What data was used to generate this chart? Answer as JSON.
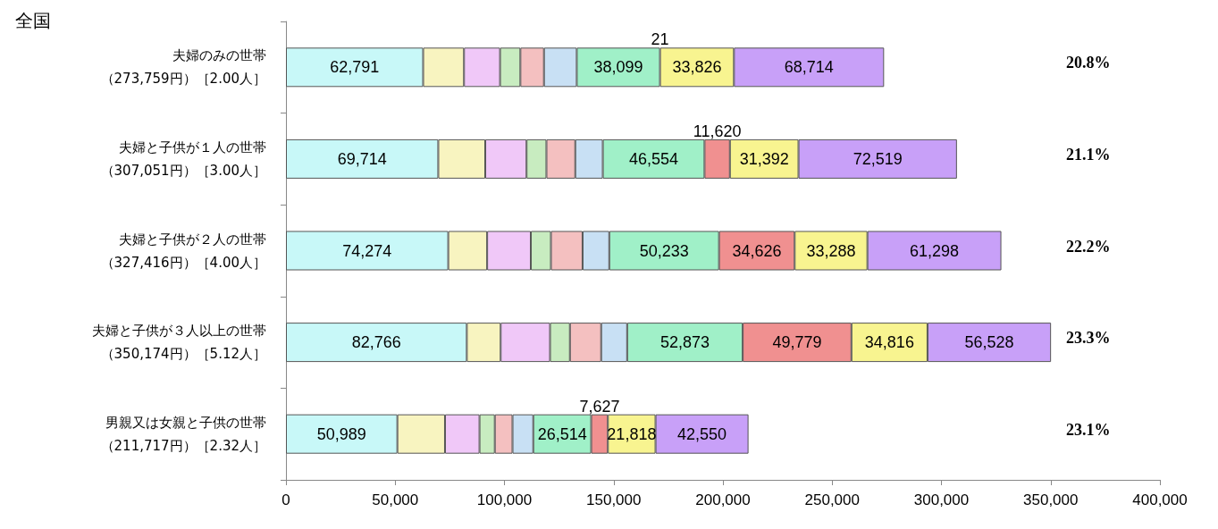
{
  "chart_data": {
    "type": "bar",
    "orientation": "horizontal",
    "stacked": true,
    "title": "全国",
    "categories": [
      "夫婦のみの世帯（273,759円）［2.00人］",
      "夫婦と子供が１人の世帯（307,051円）［3.00人］",
      "夫婦と子供が２人の世帯（327,416円）［4.00人］",
      "夫婦と子供が３人以上の世帯（350,174円）［5.12人］",
      "男親又は女親と子供の世帯（211,717円）［2.32人］"
    ],
    "series": [
      {
        "color": "#c8f8f8",
        "values": [
          62791,
          69714,
          74274,
          82766,
          50989
        ],
        "value_labels": [
          "62,791",
          "69,714",
          "74,274",
          "82,766",
          "50,989"
        ]
      },
      {
        "color": "#f8f4c0",
        "values": [
          18700,
          21500,
          17800,
          15500,
          21800
        ]
      },
      {
        "color": "#f0c8f8",
        "values": [
          16500,
          18900,
          20000,
          22600,
          15800
        ]
      },
      {
        "color": "#c8ecc0",
        "values": [
          9300,
          9100,
          9200,
          9100,
          7000
        ]
      },
      {
        "color": "#f4c0c0",
        "values": [
          10800,
          13200,
          14500,
          14300,
          8100
        ]
      },
      {
        "color": "#c8e0f4",
        "values": [
          15000,
          12600,
          12200,
          11900,
          9500
        ]
      },
      {
        "color": "#a0f0c8",
        "values": [
          38099,
          46554,
          50233,
          52873,
          26514
        ],
        "value_labels": [
          "38,099",
          "46,554",
          "50,233",
          "52,873",
          "26,514"
        ]
      },
      {
        "color": "#f09090",
        "values": [
          21,
          11620,
          34626,
          49779,
          7627
        ],
        "value_labels": [
          "21",
          "11,620",
          "34,626",
          "49,779",
          "7,627"
        ]
      },
      {
        "color": "#f8f490",
        "values": [
          33826,
          31392,
          33288,
          34816,
          21818
        ],
        "value_labels": [
          "33,826",
          "31,392",
          "33,288",
          "34,816",
          "21,818"
        ]
      },
      {
        "color": "#c8a0f8",
        "values": [
          68714,
          72519,
          61298,
          56528,
          42550
        ],
        "value_labels": [
          "68,714",
          "72,519",
          "61,298",
          "56,528",
          "42,550"
        ]
      }
    ],
    "xlim": [
      0,
      400000
    ],
    "xticks": [
      0,
      {
        "value": 50000,
        "label": "50,000"
      },
      {
        "value": 100000,
        "label": "100,000"
      },
      {
        "value": 150000,
        "label": "150,000"
      },
      {
        "value": 200000,
        "label": "200,000"
      },
      {
        "value": 250000,
        "label": "250,000"
      },
      {
        "value": 300000,
        "label": "300,000"
      },
      {
        "value": 350000,
        "label": "350,000"
      },
      {
        "value": 400000,
        "label": "400,000"
      }
    ],
    "grid": false,
    "annotations": [
      "20.8%",
      "21.1%",
      "22.2%",
      "23.3%",
      "23.1%"
    ]
  }
}
